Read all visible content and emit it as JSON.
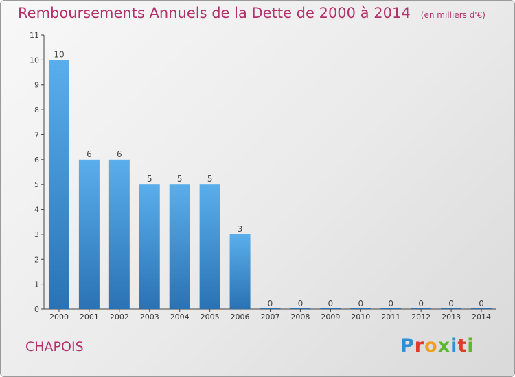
{
  "header": {
    "title": "Remboursements Annuels de la Dette de 2000 à 2014",
    "subtitle": "(en milliers d'€)"
  },
  "footer": {
    "commune": "CHAPOIS",
    "logo": "Proxiti",
    "logo_colors": [
      "#2e8fd6",
      "#e23a2e",
      "#f0a020",
      "#5cb82e",
      "#2e8fd6",
      "#e23a2e",
      "#5cb82e"
    ]
  },
  "colors": {
    "bar_light": "#5aaeeb",
    "bar_dark": "#2a72b4",
    "title": "#b3306a",
    "axis": "#444444"
  },
  "chart_data": {
    "type": "bar",
    "title": "Remboursements Annuels de la Dette de 2000 à 2014",
    "subtitle": "(en milliers d'€)",
    "xlabel": "",
    "ylabel": "",
    "categories": [
      "2000",
      "2001",
      "2002",
      "2003",
      "2004",
      "2005",
      "2006",
      "2007",
      "2008",
      "2009",
      "2010",
      "2011",
      "2012",
      "2013",
      "2014"
    ],
    "values": [
      10,
      6,
      6,
      5,
      5,
      5,
      3,
      0,
      0,
      0,
      0,
      0,
      0,
      0,
      0
    ],
    "data_labels": [
      "10",
      "6",
      "6",
      "5",
      "5",
      "5",
      "3",
      "0",
      "0",
      "0",
      "0",
      "0",
      "0",
      "0",
      "0"
    ],
    "yticks": [
      0,
      1,
      2,
      3,
      4,
      5,
      6,
      7,
      8,
      9,
      10,
      11
    ],
    "ylim": [
      0,
      11
    ],
    "grid": false,
    "legend": "none"
  }
}
